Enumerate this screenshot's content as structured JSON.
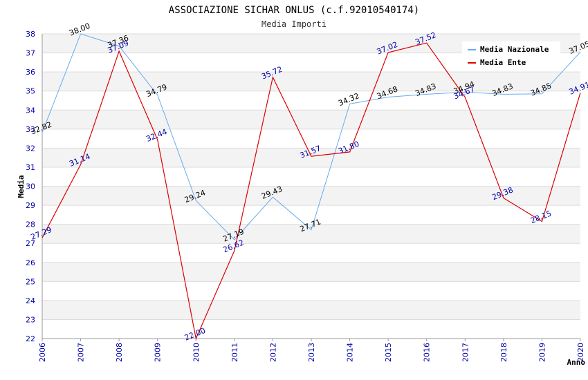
{
  "chart_data": {
    "type": "line",
    "title": "ASSOCIAZIONE SICHAR ONLUS (c.f.92010540174)",
    "subtitle": "Media Importi",
    "xlabel": "Anno",
    "ylabel": "Media",
    "ylim": [
      22,
      38
    ],
    "yticks": [
      22,
      23,
      24,
      25,
      26,
      27,
      28,
      29,
      30,
      31,
      32,
      33,
      34,
      35,
      36,
      37,
      38
    ],
    "x": [
      "2006",
      "2007",
      "2008",
      "2009",
      "2010",
      "2011",
      "2012",
      "2013",
      "2014",
      "2015",
      "2016",
      "2017",
      "2018",
      "2019",
      "2020"
    ],
    "grid": true,
    "legend_position": "top-right",
    "series": [
      {
        "name": "Media Nazionale",
        "color": "#66aaee",
        "values": [
          32.82,
          38.0,
          37.36,
          34.79,
          29.24,
          27.19,
          29.43,
          27.71,
          34.32,
          34.68,
          34.83,
          34.94,
          34.83,
          34.85,
          37.05
        ],
        "labels": [
          "32.82",
          "38.00",
          "37.36",
          "34.79",
          "29.24",
          "27.19",
          "29.43",
          "27.71",
          "34.32",
          "34.68",
          "34.83",
          "34.94",
          "34.83",
          "34.85",
          "37.05"
        ]
      },
      {
        "name": "Media Ente",
        "color": "#dd0000",
        "values": [
          27.29,
          31.14,
          37.09,
          32.44,
          22.0,
          26.62,
          35.72,
          31.57,
          31.8,
          37.02,
          37.52,
          34.67,
          29.38,
          28.15,
          34.91
        ],
        "labels": [
          "27.29",
          "31.14",
          "37.09",
          "32.44",
          "22.00",
          "26.62",
          "35.72",
          "31.57",
          "31.80",
          "37.02",
          "37.52",
          "34.67",
          "29.38",
          "28.15",
          "34.91"
        ]
      }
    ]
  }
}
